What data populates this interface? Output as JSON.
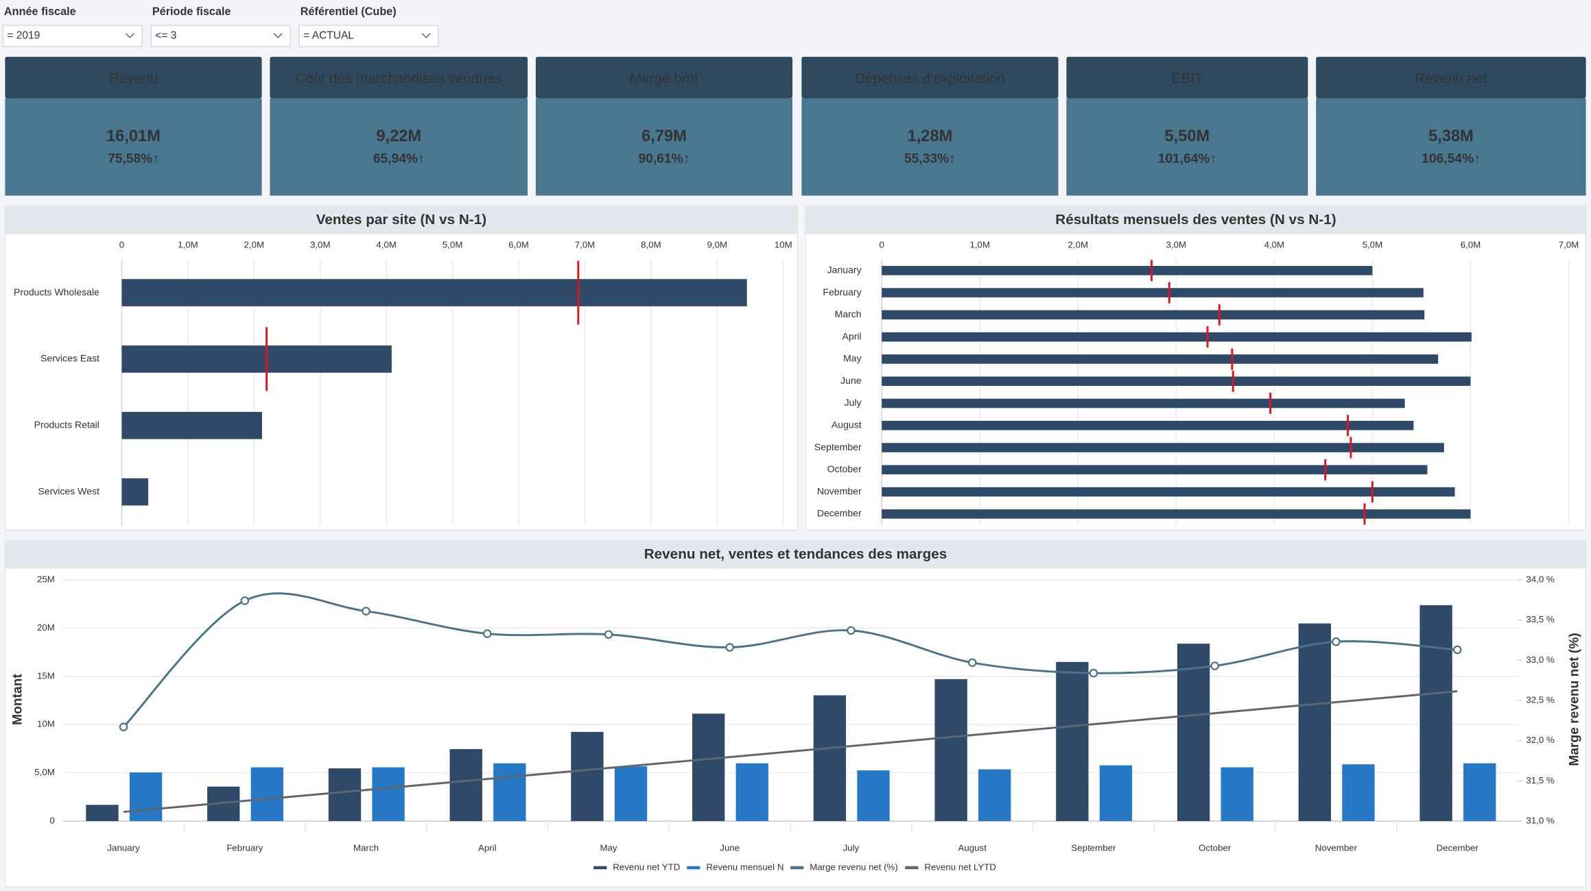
{
  "filters": [
    {
      "label": "Année fiscale",
      "value": "= 2019"
    },
    {
      "label": "Période fiscale",
      "value": "<= 3"
    },
    {
      "label": "Référentiel (Cube)",
      "value": "= ACTUAL"
    }
  ],
  "kpis": [
    {
      "title": "Revenu",
      "value": "16,01M",
      "delta": "75,58%↑",
      "color": "#7ee8b5"
    },
    {
      "title": "Coût des marchandises vendues",
      "value": "9,22M",
      "delta": "65,94%↑",
      "color": "#f0434b"
    },
    {
      "title": "Marge brut",
      "value": "6,79M",
      "delta": "90,61%↑",
      "color": "#7ee8b5"
    },
    {
      "title": "Dépenses d'exploitation",
      "value": "1,28M",
      "delta": "55,33%↑",
      "color": "#f0434b"
    },
    {
      "title": "EBIT",
      "value": "5,50M",
      "delta": "101,64%↑",
      "color": "#7ee8b5"
    },
    {
      "title": "Revenu net",
      "value": "5,38M",
      "delta": "106,54%↑",
      "color": "#7ee8b5"
    }
  ],
  "chart_data": [
    {
      "type": "hbar",
      "title": "Ventes par site (N vs N-1)",
      "categories": [
        "Products Wholesale",
        "Services East",
        "Products Retail",
        "Services West"
      ],
      "series": [
        {
          "color": "#2f4a68",
          "values": [
            9.45,
            4.08,
            2.12,
            0.4
          ]
        },
        {
          "color": "#e0141e",
          "marker": "tick",
          "values": [
            6.9,
            2.19,
            null,
            null
          ]
        }
      ],
      "xlim": [
        0,
        10
      ],
      "xticks": [
        0,
        {
          "value": 1,
          "label": "1,0M"
        },
        {
          "value": 2,
          "label": "2,0M"
        },
        {
          "value": 3,
          "label": "3,0M"
        },
        {
          "value": 4,
          "label": "4,0M"
        },
        {
          "value": 5,
          "label": "5,0M"
        },
        {
          "value": 6,
          "label": "6,0M"
        },
        {
          "value": 7,
          "label": "7,0M"
        },
        {
          "value": 8,
          "label": "8,0M"
        },
        {
          "value": 9,
          "label": "9,0M"
        },
        {
          "value": 10,
          "label": "10M"
        }
      ],
      "grid": true
    },
    {
      "type": "hbar",
      "title": "Résultats mensuels des ventes (N vs N-1)",
      "categories": [
        "January",
        "February",
        "March",
        "April",
        "May",
        "June",
        "July",
        "August",
        "September",
        "October",
        "November",
        "December"
      ],
      "series": [
        {
          "color": "#2f4a68",
          "values": [
            5.0,
            5.52,
            5.53,
            6.01,
            5.67,
            6.0,
            5.33,
            5.42,
            5.73,
            5.56,
            5.84,
            6.0
          ]
        },
        {
          "color": "#e0141e",
          "marker": "tick",
          "values": [
            2.75,
            2.93,
            3.44,
            3.32,
            3.57,
            3.58,
            3.96,
            4.75,
            4.78,
            4.52,
            5.0,
            4.92
          ]
        }
      ],
      "xlim": [
        0,
        7
      ],
      "xticks": [
        0,
        {
          "value": 1,
          "label": "1,0M"
        },
        {
          "value": 2,
          "label": "2,0M"
        },
        {
          "value": 3,
          "label": "3,0M"
        },
        {
          "value": 4,
          "label": "4,0M"
        },
        {
          "value": 5,
          "label": "5,0M"
        },
        {
          "value": 6,
          "label": "6,0M"
        },
        {
          "value": 7,
          "label": "7,0M"
        }
      ],
      "grid": true
    },
    {
      "type": "combo",
      "title": "Revenu net, ventes et tendances des marges",
      "categories": [
        "January",
        "February",
        "March",
        "April",
        "May",
        "June",
        "July",
        "August",
        "September",
        "October",
        "November",
        "December"
      ],
      "series": [
        {
          "name": "Revenu net YTD",
          "type": "bar",
          "color": "#2f4a68",
          "values": [
            1.68,
            3.57,
            5.46,
            7.46,
            9.24,
            11.13,
            13.03,
            14.71,
            16.49,
            18.38,
            20.48,
            22.37
          ]
        },
        {
          "name": "Revenu mensuel N",
          "type": "bar",
          "color": "#2878c8",
          "values": [
            5.04,
            5.57,
            5.57,
            5.99,
            5.67,
            5.99,
            5.25,
            5.36,
            5.78,
            5.57,
            5.88,
            5.99
          ]
        },
        {
          "name": "Marge revenu net (%)",
          "type": "line",
          "axis": "y2",
          "smooth": true,
          "markers": true,
          "color": "#4a7388",
          "values": [
            32.17,
            33.74,
            33.61,
            33.33,
            33.32,
            33.16,
            33.37,
            32.97,
            32.84,
            32.93,
            33.23,
            33.13
          ]
        },
        {
          "name": "Revenu net LYTD",
          "type": "line",
          "color": "#5b6670",
          "values": [
            0.95,
            2.09,
            3.22,
            4.36,
            5.5,
            6.63,
            7.77,
            8.91,
            10.04,
            11.18,
            12.32,
            13.45
          ]
        }
      ],
      "ylabel": "Montant",
      "y2label": "Marge revenu net (%)",
      "ylim": [
        0,
        25
      ],
      "yticks": [
        0,
        {
          "value": 5,
          "label": "5,0M"
        },
        {
          "value": 10,
          "label": "10M"
        },
        {
          "value": 15,
          "label": "15M"
        },
        {
          "value": 20,
          "label": "20M"
        },
        {
          "value": 25,
          "label": "25M"
        }
      ],
      "y2lim": [
        31,
        34
      ],
      "y2ticks": [
        {
          "value": 31,
          "label": "31,0 %"
        },
        {
          "value": 31.5,
          "label": "31,5 %"
        },
        {
          "value": 32,
          "label": "32,0 %"
        },
        {
          "value": 32.5,
          "label": "32,5 %"
        },
        {
          "value": 33,
          "label": "33,0 %"
        },
        {
          "value": 33.5,
          "label": "33,5 %"
        },
        {
          "value": 34,
          "label": "34,0 %"
        }
      ],
      "grid": true,
      "legend": "bottom"
    }
  ]
}
